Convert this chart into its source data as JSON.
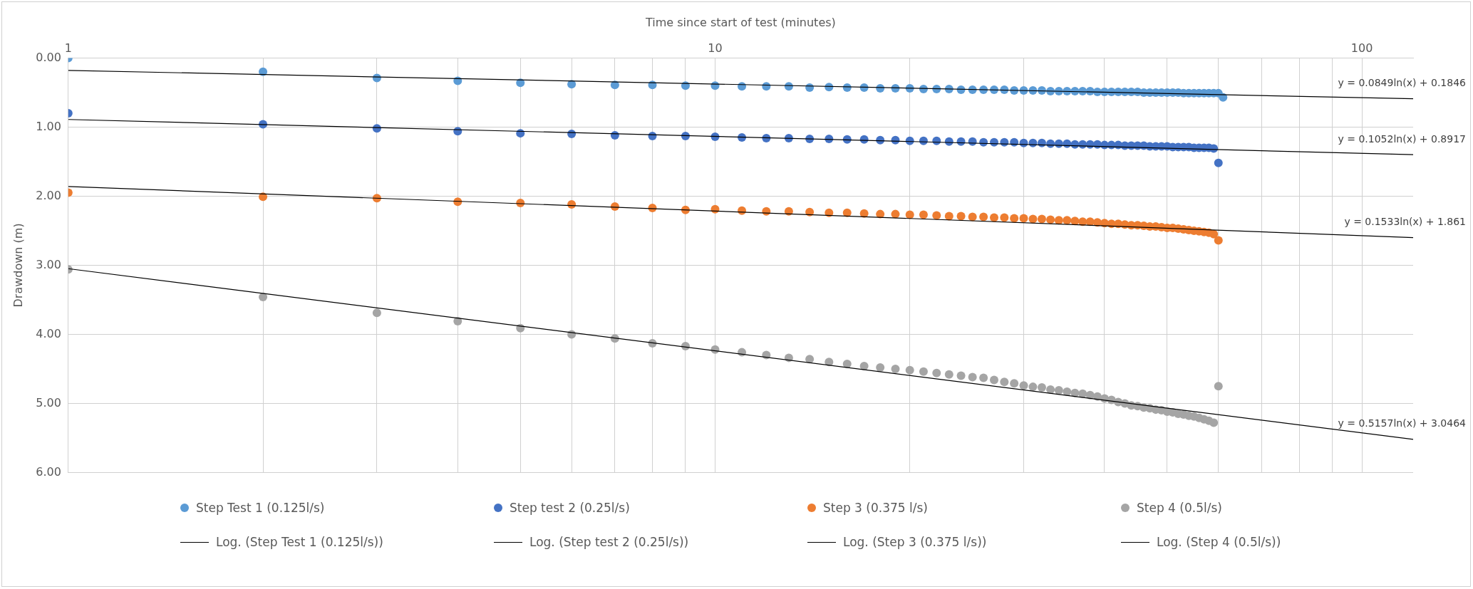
{
  "chart_data": {
    "type": "scatter",
    "xlabel": "Time since start of test (minutes)",
    "ylabel": "Drawdown (m)",
    "log": "x",
    "grid": true,
    "legend": "bottom",
    "marker": "circle",
    "xlim": [
      1,
      120
    ],
    "xticks": [
      1,
      {
        "value": 2,
        "label": null
      },
      {
        "value": 3,
        "label": null
      },
      {
        "value": 4,
        "label": null
      },
      {
        "value": 5,
        "label": null
      },
      {
        "value": 6,
        "label": null
      },
      {
        "value": 7,
        "label": null
      },
      {
        "value": 8,
        "label": null
      },
      {
        "value": 9,
        "label": null
      },
      10,
      {
        "value": 20,
        "label": null
      },
      {
        "value": 30,
        "label": null
      },
      {
        "value": 40,
        "label": null
      },
      {
        "value": 50,
        "label": null
      },
      {
        "value": 60,
        "label": null
      },
      {
        "value": 70,
        "label": null
      },
      {
        "value": 80,
        "label": null
      },
      {
        "value": 90,
        "label": null
      },
      100
    ],
    "ylim": [
      6,
      0
    ],
    "yticks": [
      {
        "value": 0,
        "label": "0.00"
      },
      {
        "value": 1,
        "label": "1.00"
      },
      {
        "value": 2,
        "label": "2.00"
      },
      {
        "value": 3,
        "label": "3.00"
      },
      {
        "value": 4,
        "label": "4.00"
      },
      {
        "value": 5,
        "label": "5.00"
      },
      {
        "value": 6,
        "label": "6.00"
      }
    ],
    "series": [
      {
        "name": "Step Test 1 (0.125l/s)",
        "color": "#5b9bd5",
        "x": [
          1,
          2,
          3,
          4,
          5,
          6,
          7,
          8,
          9,
          10,
          11,
          12,
          13,
          14,
          15,
          16,
          17,
          18,
          19,
          20,
          21,
          22,
          23,
          24,
          25,
          26,
          27,
          28,
          29,
          30,
          31,
          32,
          33,
          34,
          35,
          36,
          37,
          38,
          39,
          40,
          41,
          42,
          43,
          44,
          45,
          46,
          47,
          48,
          49,
          50,
          51,
          52,
          53,
          54,
          55,
          56,
          57,
          58,
          59,
          60,
          61
        ],
        "values": [
          0.0,
          0.2,
          0.29,
          0.33,
          0.36,
          0.38,
          0.39,
          0.39,
          0.4,
          0.4,
          0.41,
          0.41,
          0.41,
          0.43,
          0.42,
          0.43,
          0.43,
          0.44,
          0.44,
          0.44,
          0.45,
          0.45,
          0.45,
          0.46,
          0.46,
          0.46,
          0.46,
          0.46,
          0.47,
          0.47,
          0.47,
          0.47,
          0.48,
          0.48,
          0.48,
          0.48,
          0.48,
          0.48,
          0.49,
          0.49,
          0.49,
          0.49,
          0.49,
          0.49,
          0.49,
          0.5,
          0.5,
          0.5,
          0.5,
          0.5,
          0.5,
          0.5,
          0.51,
          0.51,
          0.51,
          0.51,
          0.51,
          0.51,
          0.51,
          0.51,
          0.57
        ]
      },
      {
        "name": "Step test 2 (0.25l/s)",
        "color": "#4472c4",
        "x": [
          1,
          2,
          3,
          4,
          5,
          6,
          7,
          8,
          9,
          10,
          11,
          12,
          13,
          14,
          15,
          16,
          17,
          18,
          19,
          20,
          21,
          22,
          23,
          24,
          25,
          26,
          27,
          28,
          29,
          30,
          31,
          32,
          33,
          34,
          35,
          36,
          37,
          38,
          39,
          40,
          41,
          42,
          43,
          44,
          45,
          46,
          47,
          48,
          49,
          50,
          51,
          52,
          53,
          54,
          55,
          56,
          57,
          58,
          59,
          60
        ],
        "values": [
          0.8,
          0.96,
          1.02,
          1.06,
          1.09,
          1.1,
          1.12,
          1.13,
          1.13,
          1.14,
          1.15,
          1.16,
          1.16,
          1.17,
          1.17,
          1.18,
          1.18,
          1.19,
          1.19,
          1.2,
          1.2,
          1.2,
          1.21,
          1.21,
          1.21,
          1.22,
          1.22,
          1.22,
          1.22,
          1.23,
          1.23,
          1.23,
          1.24,
          1.24,
          1.24,
          1.25,
          1.25,
          1.25,
          1.25,
          1.26,
          1.26,
          1.26,
          1.27,
          1.27,
          1.27,
          1.27,
          1.28,
          1.28,
          1.28,
          1.28,
          1.29,
          1.29,
          1.29,
          1.29,
          1.3,
          1.3,
          1.3,
          1.3,
          1.31,
          1.52
        ]
      },
      {
        "name": "Step 3 (0.375 l/s)",
        "color": "#ed7d31",
        "x": [
          1,
          2,
          3,
          4,
          5,
          6,
          7,
          8,
          9,
          10,
          11,
          12,
          13,
          14,
          15,
          16,
          17,
          18,
          19,
          20,
          21,
          22,
          23,
          24,
          25,
          26,
          27,
          28,
          29,
          30,
          31,
          32,
          33,
          34,
          35,
          36,
          37,
          38,
          39,
          40,
          41,
          42,
          43,
          44,
          45,
          46,
          47,
          48,
          49,
          50,
          51,
          52,
          53,
          54,
          55,
          56,
          57,
          58,
          59,
          60
        ],
        "values": [
          1.95,
          2.01,
          2.03,
          2.08,
          2.1,
          2.12,
          2.15,
          2.17,
          2.2,
          2.19,
          2.21,
          2.22,
          2.22,
          2.23,
          2.24,
          2.24,
          2.25,
          2.26,
          2.26,
          2.27,
          2.27,
          2.28,
          2.29,
          2.29,
          2.3,
          2.3,
          2.31,
          2.31,
          2.32,
          2.32,
          2.33,
          2.33,
          2.34,
          2.35,
          2.35,
          2.36,
          2.37,
          2.37,
          2.38,
          2.39,
          2.4,
          2.4,
          2.41,
          2.42,
          2.42,
          2.43,
          2.44,
          2.44,
          2.45,
          2.46,
          2.46,
          2.47,
          2.48,
          2.49,
          2.5,
          2.51,
          2.52,
          2.53,
          2.55,
          2.64
        ]
      },
      {
        "name": "Step 4 (0.5l/s)",
        "color": "#a5a5a5",
        "x": [
          1,
          2,
          3,
          4,
          5,
          6,
          7,
          8,
          9,
          10,
          11,
          12,
          13,
          14,
          15,
          16,
          17,
          18,
          19,
          20,
          21,
          22,
          23,
          24,
          25,
          26,
          27,
          28,
          29,
          30,
          31,
          32,
          33,
          34,
          35,
          36,
          37,
          38,
          39,
          40,
          41,
          42,
          43,
          44,
          45,
          46,
          47,
          48,
          49,
          50,
          51,
          52,
          53,
          54,
          55,
          56,
          57,
          58,
          59,
          60
        ],
        "values": [
          3.06,
          3.46,
          3.69,
          3.81,
          3.91,
          4.0,
          4.06,
          4.13,
          4.17,
          4.22,
          4.26,
          4.3,
          4.34,
          4.36,
          4.4,
          4.43,
          4.46,
          4.48,
          4.5,
          4.52,
          4.54,
          4.56,
          4.58,
          4.6,
          4.62,
          4.63,
          4.66,
          4.69,
          4.71,
          4.74,
          4.76,
          4.77,
          4.8,
          4.81,
          4.83,
          4.85,
          4.86,
          4.88,
          4.9,
          4.93,
          4.95,
          4.98,
          5.0,
          5.03,
          5.04,
          5.06,
          5.07,
          5.09,
          5.1,
          5.12,
          5.13,
          5.15,
          5.16,
          5.18,
          5.19,
          5.21,
          5.23,
          5.25,
          5.28,
          4.75
        ]
      },
      {
        "name": "Log. (Step Test 1 (0.125l/s))",
        "type": "line",
        "marker": "none",
        "color": "#000000",
        "x": [
          1,
          120
        ],
        "values": [
          0.18,
          0.59
        ]
      },
      {
        "name": "Log. (Step test 2 (0.25l/s))",
        "type": "line",
        "marker": "none",
        "color": "#000000",
        "x": [
          1,
          120
        ],
        "values": [
          0.89,
          1.4
        ]
      },
      {
        "name": "Log. (Step 3 (0.375 l/s))",
        "type": "line",
        "marker": "none",
        "color": "#000000",
        "x": [
          1,
          120
        ],
        "values": [
          1.86,
          2.6
        ]
      },
      {
        "name": "Log. (Step 4 (0.5l/s))",
        "type": "line",
        "marker": "none",
        "color": "#000000",
        "x": [
          1,
          120
        ],
        "values": [
          3.05,
          5.52
        ]
      }
    ],
    "annotations": [
      "y = 0.0849ln(x) + 0.1846",
      "y = 0.1052ln(x) + 0.8917",
      "y = 0.1533ln(x) + 1.861",
      "y = 0.5157ln(x) + 3.0464"
    ]
  }
}
